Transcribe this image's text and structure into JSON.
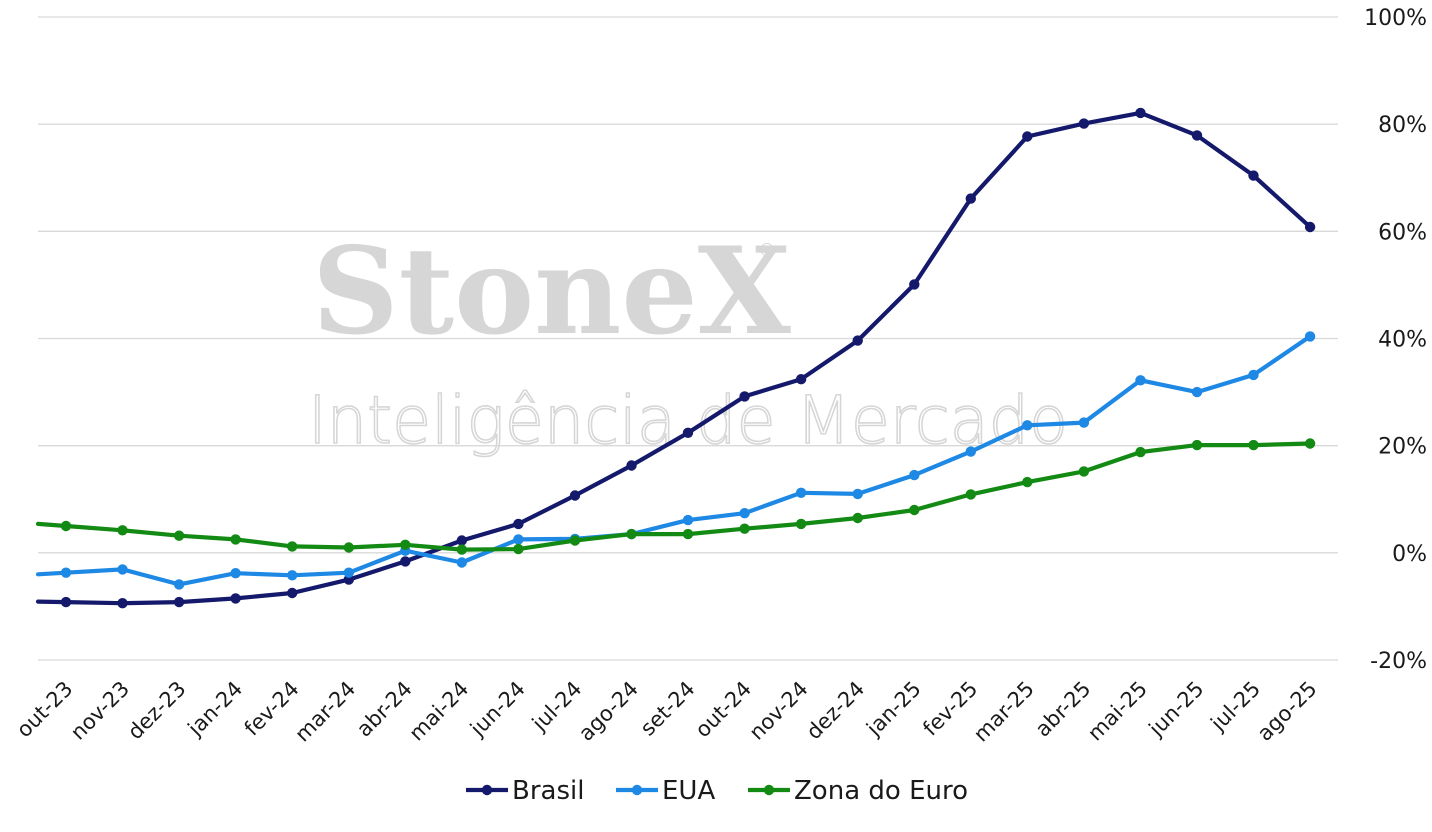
{
  "watermark": {
    "brand": "StoneX",
    "registered": "®",
    "subtitle": "Inteligência de Mercado"
  },
  "chart_data": {
    "type": "line",
    "title": "",
    "xlabel": "",
    "ylabel": "",
    "ylim": [
      -20,
      100
    ],
    "y_ticks": [
      100,
      80,
      60,
      40,
      20,
      0,
      -20
    ],
    "y_tick_labels": [
      "100%",
      "80%",
      "60%",
      "40%",
      "20%",
      "0%",
      "-20%"
    ],
    "y_axis_position": "right",
    "grid": true,
    "legend_position": "bottom",
    "categories": [
      "out-23",
      "nov-23",
      "dez-23",
      "jan-24",
      "fev-24",
      "mar-24",
      "abr-24",
      "mai-24",
      "jun-24",
      "jul-24",
      "ago-24",
      "set-24",
      "out-24",
      "nov-24",
      "dez-24",
      "jan-25",
      "fev-25",
      "mar-25",
      "abr-25",
      "mai-25",
      "jun-25",
      "jul-25",
      "ago-25"
    ],
    "series": [
      {
        "name": "Brasil",
        "color": "#14196b",
        "values": [
          -9.2,
          -9.4,
          -9.2,
          -8.5,
          -7.5,
          -5.0,
          -1.6,
          2.3,
          5.4,
          10.7,
          16.3,
          22.4,
          29.2,
          32.4,
          39.6,
          50.1,
          66.1,
          77.7,
          80.1,
          82.1,
          77.9,
          70.4,
          60.8
        ]
      },
      {
        "name": "EUA",
        "color": "#1e88e5",
        "values": [
          -3.7,
          -3.1,
          -5.9,
          -3.8,
          -4.2,
          -3.7,
          0.4,
          -1.8,
          2.5,
          2.6,
          3.5,
          6.1,
          7.4,
          11.2,
          11.0,
          14.5,
          18.9,
          23.8,
          24.3,
          32.2,
          30.0,
          33.2,
          40.4
        ]
      },
      {
        "name": "Zona do Euro",
        "color": "#138a13",
        "values": [
          5.0,
          4.2,
          3.2,
          2.5,
          1.2,
          1.0,
          1.5,
          0.6,
          0.7,
          2.3,
          3.5,
          3.5,
          4.5,
          5.4,
          6.5,
          8.0,
          10.9,
          13.2,
          15.2,
          18.8,
          20.1,
          20.1,
          20.4
        ]
      }
    ]
  }
}
